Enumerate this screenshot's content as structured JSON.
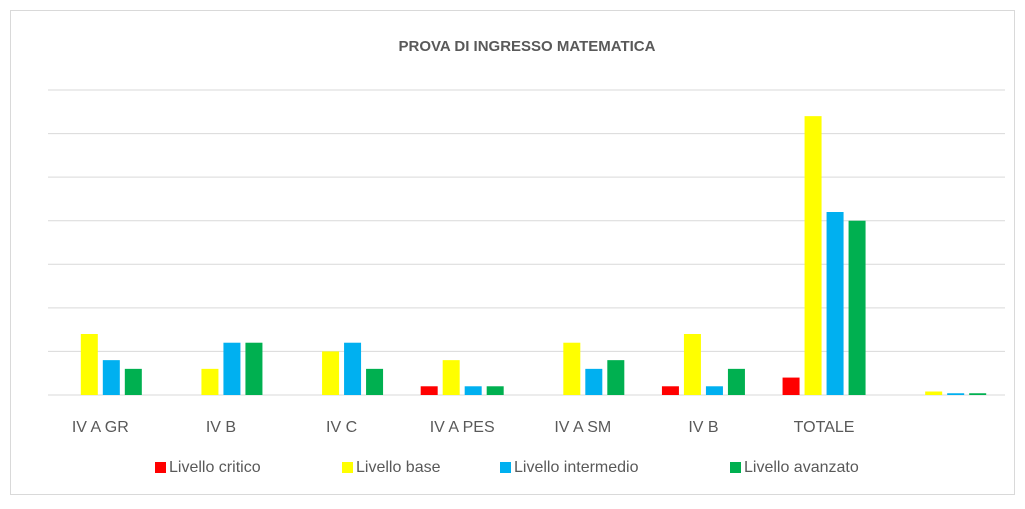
{
  "chart_data": {
    "type": "bar",
    "title": "PROVA DI INGRESSO  MATEMATICA",
    "categories": [
      "IV A GR",
      "IV B",
      "IV C",
      "IV A PES",
      "IV A SM",
      "IV B",
      "TOTALE",
      null
    ],
    "series": [
      {
        "name": "Livello critico",
        "color": "#ff0000",
        "values": [
          0,
          0,
          0,
          1,
          0,
          1,
          2,
          0
        ]
      },
      {
        "name": "Livello base",
        "color": "#ffff00",
        "values": [
          7,
          3,
          5,
          4,
          6,
          7,
          32,
          0.4
        ]
      },
      {
        "name": "Livello intermedio",
        "color": "#00b0f0",
        "values": [
          4,
          6,
          6,
          1,
          3,
          1,
          21,
          0.2
        ]
      },
      {
        "name": "Livello avanzato",
        "color": "#00b050",
        "values": [
          3,
          6,
          3,
          1,
          4,
          3,
          20,
          0.2
        ]
      }
    ],
    "ylim": [
      0,
      35
    ],
    "yticks": [
      0,
      5,
      10,
      15,
      20,
      25,
      30,
      35
    ],
    "grid": true,
    "legend": "bottom"
  }
}
